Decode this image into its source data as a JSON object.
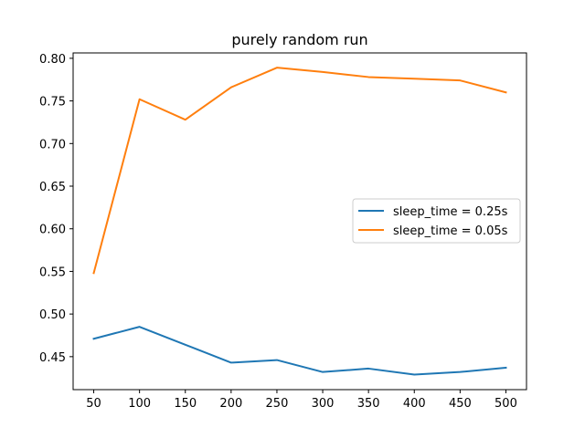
{
  "chart_data": {
    "type": "line",
    "title": "purely random run",
    "xlabel": "",
    "ylabel": "",
    "x": [
      50,
      100,
      150,
      200,
      250,
      300,
      350,
      400,
      450,
      500
    ],
    "xticks": [
      50,
      100,
      150,
      200,
      250,
      300,
      350,
      400,
      450,
      500
    ],
    "xlim": [
      27.5,
      522.5
    ],
    "yticks": [
      0.45,
      0.5,
      0.55,
      0.6,
      0.65,
      0.7,
      0.75,
      0.8
    ],
    "ylim": [
      0.4113,
      0.8063
    ],
    "grid": false,
    "legend_position": "center-right",
    "series": [
      {
        "name": "sleep_time = 0.25s",
        "color": "#1f77b4",
        "values": [
          0.471,
          0.485,
          0.464,
          0.443,
          0.446,
          0.432,
          0.436,
          0.429,
          0.432,
          0.437
        ]
      },
      {
        "name": "sleep_time = 0.05s",
        "color": "#ff7f0e",
        "values": [
          0.548,
          0.752,
          0.728,
          0.766,
          0.789,
          0.784,
          0.778,
          0.776,
          0.774,
          0.76
        ]
      }
    ]
  }
}
